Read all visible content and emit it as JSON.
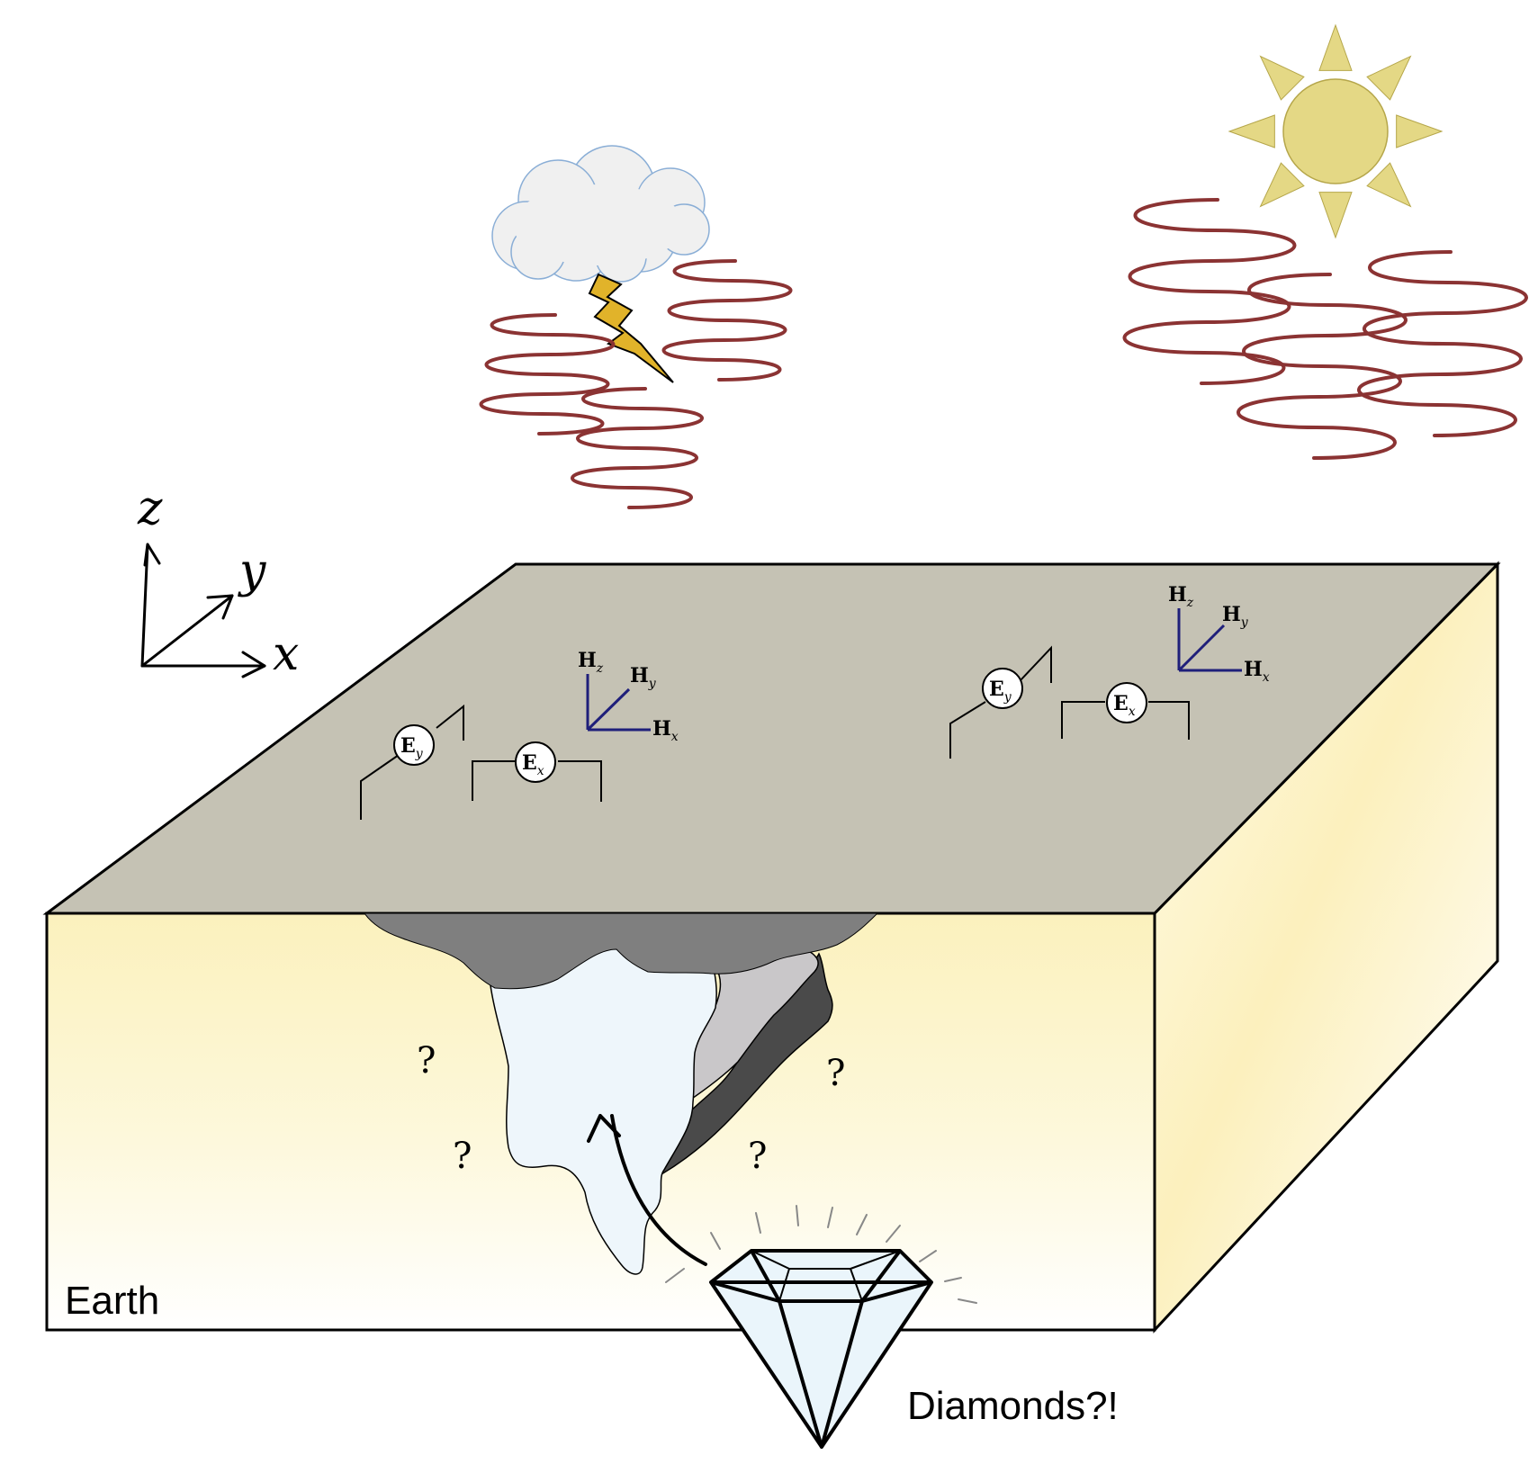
{
  "axes": {
    "x_label": "x",
    "y_label": "y",
    "z_label": "z"
  },
  "station_left": {
    "ey": {
      "main": "E",
      "sub": "y"
    },
    "ex": {
      "main": "E",
      "sub": "x"
    },
    "hz": {
      "main": "H",
      "sub": "z"
    },
    "hy": {
      "main": "H",
      "sub": "y"
    },
    "hx": {
      "main": "H",
      "sub": "x"
    }
  },
  "station_right": {
    "ey": {
      "main": "E",
      "sub": "y"
    },
    "ex": {
      "main": "E",
      "sub": "x"
    },
    "hz": {
      "main": "H",
      "sub": "z"
    },
    "hy": {
      "main": "H",
      "sub": "y"
    },
    "hx": {
      "main": "H",
      "sub": "x"
    }
  },
  "question_marks": [
    "?",
    "?",
    "?",
    "?"
  ],
  "earth_label": "Earth",
  "diamond_label": "Diamonds?!",
  "colors": {
    "block_top": "#c5c2b4",
    "block_side": "#fdf5c9",
    "wave": "#8b3333",
    "sun": "#e4d885",
    "sun_stroke": "#b5a64a",
    "bolt": "#e1b32a",
    "cloud_fill": "#f0f0f0",
    "cloud_stroke": "#8aaed6",
    "sensor_h": "#1f1f7a",
    "pipe_light": "#eef6fb",
    "rock_mid": "#7f7f7f",
    "rock_light": "#c9c7c9",
    "rock_dark": "#4a4a4a",
    "diamond": "#eaf5fb"
  }
}
